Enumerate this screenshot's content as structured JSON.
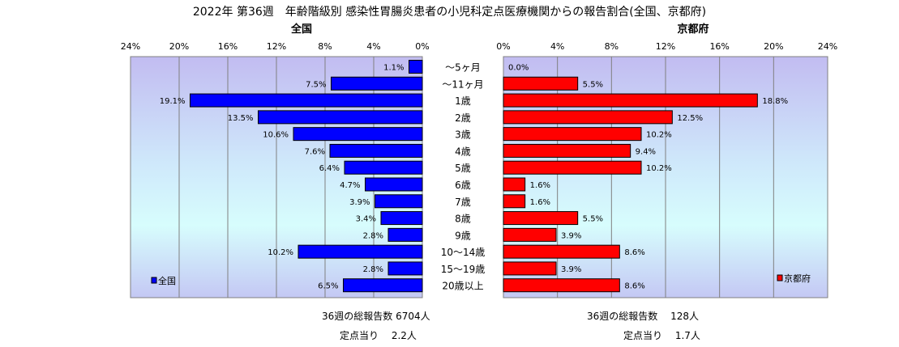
{
  "chart_data": {
    "type": "bar",
    "title": "2022年 第36週　年齢階級別 感染性胃腸炎患者の小児科定点医療機関からの報告割合(全国、京都府)",
    "xlim": [
      0,
      24
    ],
    "tick_labels": [
      "0%",
      "4%",
      "8%",
      "12%",
      "16%",
      "20%",
      "24%"
    ],
    "categories": [
      "～5ヶ月",
      "～11ヶ月",
      "1歳",
      "2歳",
      "3歳",
      "4歳",
      "5歳",
      "6歳",
      "7歳",
      "8歳",
      "9歳",
      "10～14歳",
      "15～19歳",
      "20歳以上"
    ],
    "series": [
      {
        "name": "全国",
        "color": "#0000ff",
        "values": [
          1.1,
          7.5,
          19.1,
          13.5,
          10.6,
          7.6,
          6.4,
          4.7,
          3.9,
          3.4,
          2.8,
          10.2,
          2.8,
          6.5
        ],
        "labels": [
          "1.1%",
          "7.5%",
          "19.1%",
          "13.5%",
          "10.6%",
          "7.6%",
          "6.4%",
          "4.7%",
          "3.9%",
          "3.4%",
          "2.8%",
          "10.2%",
          "2.8%",
          "6.5%"
        ]
      },
      {
        "name": "京都府",
        "color": "#ff0000",
        "values": [
          0.0,
          5.5,
          18.8,
          12.5,
          10.2,
          9.4,
          10.2,
          1.6,
          1.6,
          5.5,
          3.9,
          8.6,
          3.9,
          8.6
        ],
        "labels": [
          "0.0%",
          "5.5%",
          "18.8%",
          "12.5%",
          "10.2%",
          "9.4%",
          "10.2%",
          "1.6%",
          "1.6%",
          "5.5%",
          "3.9%",
          "8.6%",
          "3.9%",
          "8.6%"
        ]
      }
    ],
    "grid": true,
    "legend_position": "bottom-left / bottom-right"
  },
  "panels": {
    "left_title": "全国",
    "right_title": "京都府"
  },
  "footer": {
    "national_total": "36週の総報告数 6704人",
    "national_per_site": "定点当り　 2.2人",
    "kyoto_total": "36週の総報告数　 128人",
    "kyoto_per_site": "定点当り　 1.7人"
  }
}
